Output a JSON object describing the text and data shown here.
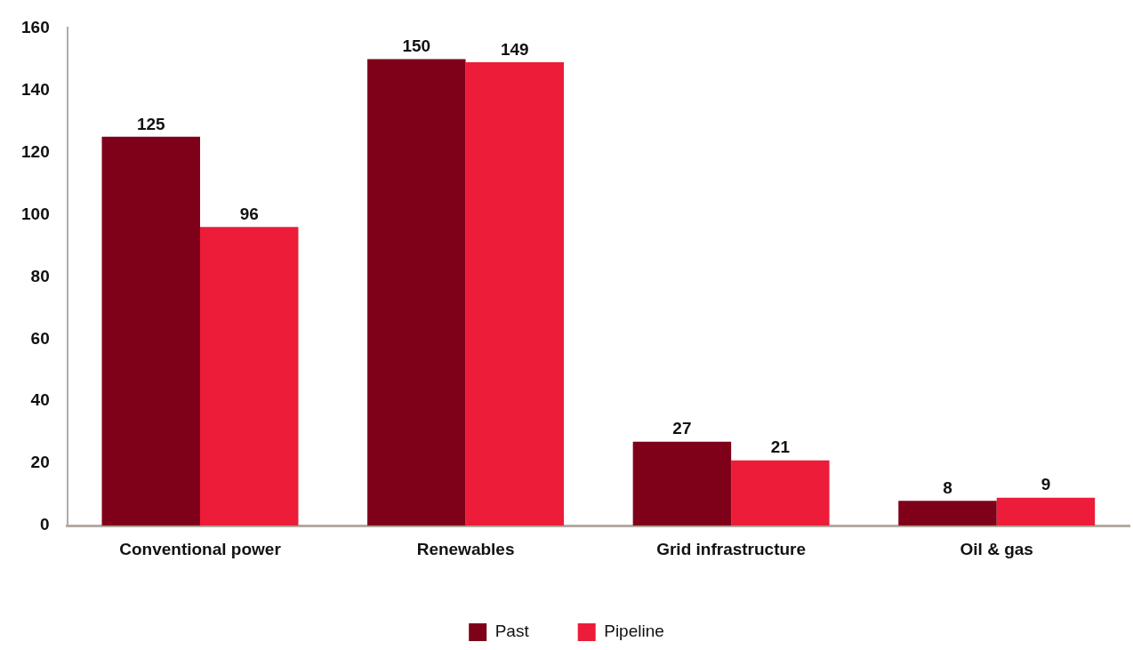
{
  "chart_data": {
    "type": "bar",
    "categories": [
      "Conventional power",
      "Renewables",
      "Grid infrastructure",
      "Oil & gas"
    ],
    "series": [
      {
        "name": "Past",
        "color": "#7f0019",
        "values": [
          125,
          150,
          27,
          8
        ]
      },
      {
        "name": "Pipeline",
        "color": "#ed1c38",
        "values": [
          96,
          149,
          21,
          9
        ]
      }
    ],
    "ylim": [
      0,
      160
    ],
    "yticks": [
      0,
      20,
      40,
      60,
      80,
      100,
      120,
      140,
      160
    ],
    "grid": false,
    "legend": "bottom",
    "data_labels": true
  }
}
